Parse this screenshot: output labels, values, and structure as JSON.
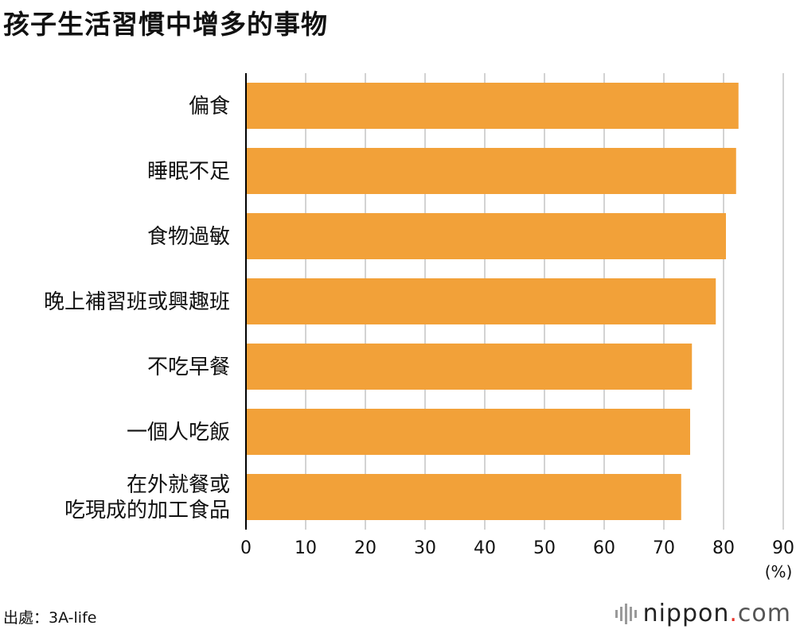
{
  "title": "孩子生活習慣中增多的事物",
  "source": "出處：3A-life",
  "brand": {
    "name": "nippon",
    "dot": ".",
    "tld": "com"
  },
  "colors": {
    "bar": "#F2A139",
    "grid": "#d3d3d3",
    "axis": "#000000"
  },
  "chart_data": {
    "type": "bar",
    "orientation": "horizontal",
    "categories": [
      [
        "偏食"
      ],
      [
        "睡眠不足"
      ],
      [
        "食物過敏"
      ],
      [
        "晚上補習班或興趣班"
      ],
      [
        "不吃早餐"
      ],
      [
        "一個人吃飯"
      ],
      [
        "在外就餐或",
        "吃現成的加工食品"
      ]
    ],
    "values": [
      82.5,
      82.1,
      80.4,
      78.7,
      74.7,
      74.4,
      72.9
    ],
    "xlim": [
      0,
      90
    ],
    "xticks": [
      0,
      10,
      20,
      30,
      40,
      50,
      60,
      70,
      80,
      90
    ],
    "xunit": "(%)",
    "grid": true
  }
}
